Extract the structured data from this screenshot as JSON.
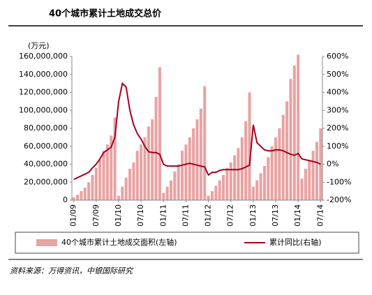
{
  "chart_data": {
    "type": "bar-line",
    "title": "40个城市累计土地成交总价",
    "y_label": "(万元)",
    "source": "资料来源：万得资讯，中银国际研究",
    "categories": [
      "01/09",
      null,
      null,
      null,
      null,
      null,
      "07/09",
      null,
      null,
      null,
      null,
      null,
      "01/10",
      null,
      null,
      null,
      null,
      null,
      "07/10",
      null,
      null,
      null,
      null,
      null,
      "01/11",
      null,
      null,
      null,
      null,
      null,
      "07/11",
      null,
      null,
      null,
      null,
      null,
      "01/12",
      null,
      null,
      null,
      null,
      null,
      "07/12",
      null,
      null,
      null,
      null,
      null,
      "01/13",
      null,
      null,
      null,
      null,
      null,
      "07/13",
      null,
      null,
      null,
      null,
      null,
      "01/14",
      null,
      null,
      null,
      null,
      null,
      "07/14"
    ],
    "series": [
      {
        "name": "40个城市累计土地成交面积(左轴)",
        "type": "bar",
        "color": "#e8a3a3",
        "values": [
          3000000,
          6000000,
          10000000,
          14000000,
          20000000,
          28000000,
          36000000,
          45000000,
          55000000,
          62000000,
          72000000,
          92000000,
          5000000,
          15000000,
          25000000,
          35000000,
          42000000,
          55000000,
          62000000,
          70000000,
          82000000,
          90000000,
          115000000,
          148000000,
          8000000,
          15000000,
          22000000,
          32000000,
          40000000,
          55000000,
          62000000,
          70000000,
          80000000,
          90000000,
          102000000,
          127000000,
          5000000,
          10000000,
          16000000,
          22000000,
          28000000,
          36000000,
          42000000,
          50000000,
          58000000,
          70000000,
          88000000,
          120000000,
          15000000,
          22000000,
          30000000,
          38000000,
          48000000,
          60000000,
          70000000,
          80000000,
          95000000,
          110000000,
          135000000,
          150000000,
          162000000,
          24000000,
          35000000,
          45000000,
          55000000,
          65000000,
          80000000
        ]
      },
      {
        "name": "累计同比(右轴)",
        "type": "line",
        "axis": "y2",
        "color": "#a50021",
        "values": [
          -85,
          -75,
          -65,
          -55,
          -45,
          -20,
          0,
          30,
          65,
          80,
          95,
          150,
          350,
          450,
          430,
          300,
          220,
          170,
          140,
          100,
          70,
          65,
          65,
          55,
          0,
          -10,
          -10,
          -10,
          -10,
          -5,
          0,
          5,
          0,
          -5,
          -10,
          -15,
          -60,
          -45,
          -45,
          -35,
          -30,
          -30,
          -30,
          -30,
          -30,
          -25,
          -15,
          -5,
          220,
          120,
          100,
          80,
          75,
          75,
          80,
          80,
          75,
          65,
          55,
          50,
          60,
          30,
          25,
          20,
          15,
          10,
          0
        ]
      }
    ],
    "ylim": [
      0,
      160000000
    ],
    "yticks": [
      0,
      {
        "value": 20000000,
        "label": "20,000,000"
      },
      {
        "value": 40000000,
        "label": "40,000,000"
      },
      {
        "value": 60000000,
        "label": "60,000,000"
      },
      {
        "value": 80000000,
        "label": "80,000,000"
      },
      {
        "value": 100000000,
        "label": "100,000,000"
      },
      {
        "value": 120000000,
        "label": "120,000,000"
      },
      {
        "value": 140000000,
        "label": "140,000,000"
      },
      {
        "value": 160000000,
        "label": "160,000,000"
      }
    ],
    "y2lim": [
      -200,
      600
    ],
    "y2ticks": [
      {
        "value": -200,
        "label": "-200%"
      },
      {
        "value": -100,
        "label": "-100%"
      },
      {
        "value": 0,
        "label": "0%"
      },
      {
        "value": 100,
        "label": "100%"
      },
      {
        "value": 200,
        "label": "200%"
      },
      {
        "value": 300,
        "label": "300%"
      },
      {
        "value": 400,
        "label": "400%"
      },
      {
        "value": 500,
        "label": "500%"
      },
      {
        "value": 600,
        "label": "600%"
      }
    ]
  }
}
